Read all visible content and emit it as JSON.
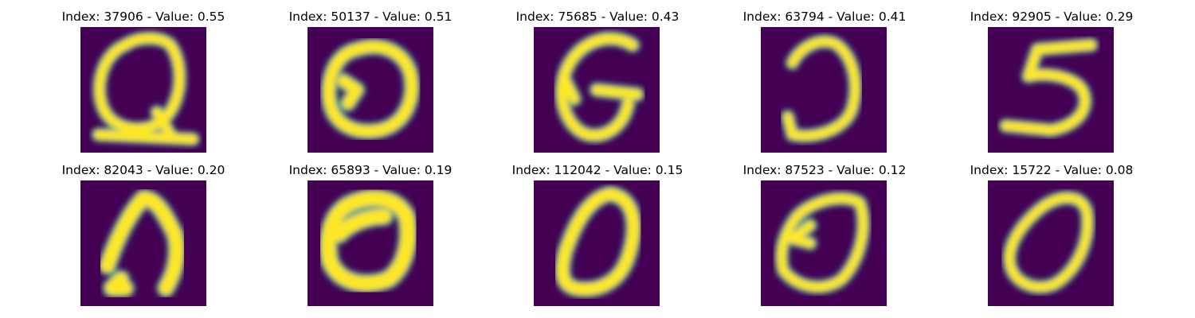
{
  "figure": {
    "background": "#ffffff",
    "colormap": {
      "low": "#440154",
      "mid": "#21918c",
      "high": "#fde725"
    },
    "panels": [
      {
        "title": "Index: 37906 - Value: 0.55",
        "glyph": "letter-Q"
      },
      {
        "title": "Index: 50137 - Value: 0.51",
        "glyph": "letter-O"
      },
      {
        "title": "Index: 75685 - Value: 0.43",
        "glyph": "letter-G"
      },
      {
        "title": "Index: 63794 - Value: 0.41",
        "glyph": "reversed-C"
      },
      {
        "title": "Index: 92905 - Value: 0.29",
        "glyph": "digit-5"
      },
      {
        "title": "Index: 82043 - Value: 0.20",
        "glyph": "arch"
      },
      {
        "title": "Index: 65893 - Value: 0.19",
        "glyph": "letter-O"
      },
      {
        "title": "Index: 112042 - Value: 0.15",
        "glyph": "digit-0"
      },
      {
        "title": "Index: 87523 - Value: 0.12",
        "glyph": "letter-E"
      },
      {
        "title": "Index: 15722 - Value: 0.08",
        "glyph": "digit-0"
      }
    ]
  }
}
